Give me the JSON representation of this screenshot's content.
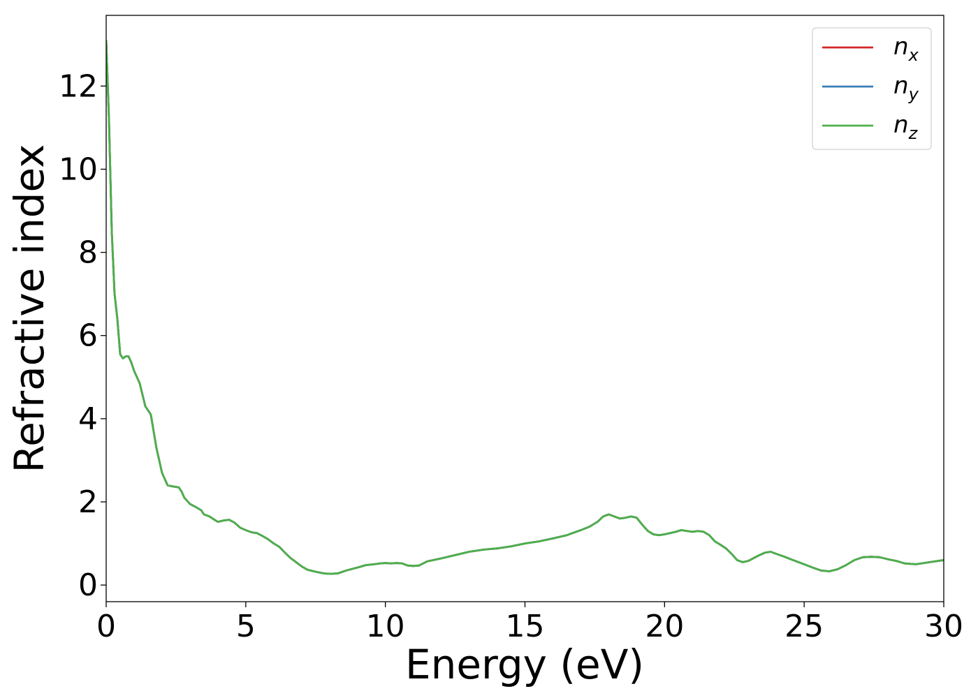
{
  "chart_data": {
    "type": "line",
    "title": "",
    "xlabel": "Energy (eV)",
    "ylabel": "Refractive index",
    "xlim": [
      0,
      30
    ],
    "ylim": [
      -0.4,
      13.7
    ],
    "xticks": [
      "0",
      "5",
      "10",
      "15",
      "20",
      "25",
      "30"
    ],
    "yticks": [
      "0",
      "2",
      "4",
      "6",
      "8",
      "10",
      "12"
    ],
    "grid": false,
    "legend_position": "top-right",
    "x": [
      0,
      0.1,
      0.2,
      0.3,
      0.4,
      0.5,
      0.6,
      0.7,
      0.8,
      0.9,
      1.0,
      1.1,
      1.2,
      1.4,
      1.6,
      1.8,
      2.0,
      2.2,
      2.4,
      2.6,
      2.7,
      2.8,
      3.0,
      3.2,
      3.4,
      3.5,
      3.7,
      3.9,
      4.0,
      4.2,
      4.4,
      4.6,
      4.8,
      5.0,
      5.2,
      5.4,
      5.6,
      5.8,
      6.0,
      6.2,
      6.4,
      6.6,
      6.8,
      7.0,
      7.2,
      7.5,
      7.8,
      8.0,
      8.3,
      8.6,
      9.0,
      9.3,
      9.6,
      9.8,
      10.0,
      10.2,
      10.4,
      10.6,
      10.8,
      11.0,
      11.2,
      11.5,
      12.0,
      12.5,
      13.0,
      13.5,
      14.0,
      14.5,
      15.0,
      15.5,
      16.0,
      16.5,
      17.0,
      17.3,
      17.6,
      17.8,
      18.0,
      18.2,
      18.4,
      18.6,
      18.8,
      19.0,
      19.2,
      19.4,
      19.6,
      19.8,
      20.0,
      20.2,
      20.4,
      20.6,
      20.8,
      21.0,
      21.2,
      21.4,
      21.6,
      21.8,
      22.0,
      22.2,
      22.4,
      22.6,
      22.8,
      23.0,
      23.2,
      23.4,
      23.6,
      23.8,
      24.0,
      24.3,
      24.6,
      25.0,
      25.3,
      25.6,
      25.9,
      26.2,
      26.5,
      26.8,
      27.1,
      27.4,
      27.7,
      28.0,
      28.3,
      28.6,
      29.0,
      29.5,
      30.0
    ],
    "series": [
      {
        "name": "n_x",
        "color": "#d62728",
        "y": [
          13.1,
          11.2,
          8.5,
          7.0,
          6.4,
          5.55,
          5.45,
          5.5,
          5.5,
          5.35,
          5.15,
          5.0,
          4.85,
          4.3,
          4.1,
          3.3,
          2.7,
          2.4,
          2.37,
          2.35,
          2.25,
          2.1,
          1.95,
          1.88,
          1.8,
          1.7,
          1.65,
          1.56,
          1.52,
          1.55,
          1.57,
          1.5,
          1.38,
          1.32,
          1.27,
          1.25,
          1.18,
          1.1,
          1.0,
          0.92,
          0.78,
          0.65,
          0.55,
          0.45,
          0.37,
          0.32,
          0.28,
          0.27,
          0.28,
          0.35,
          0.42,
          0.48,
          0.5,
          0.52,
          0.53,
          0.52,
          0.53,
          0.52,
          0.47,
          0.46,
          0.47,
          0.57,
          0.64,
          0.72,
          0.8,
          0.85,
          0.88,
          0.93,
          1.0,
          1.05,
          1.12,
          1.2,
          1.32,
          1.4,
          1.52,
          1.65,
          1.7,
          1.65,
          1.6,
          1.62,
          1.65,
          1.62,
          1.45,
          1.3,
          1.22,
          1.2,
          1.22,
          1.25,
          1.28,
          1.32,
          1.3,
          1.28,
          1.3,
          1.28,
          1.2,
          1.05,
          0.97,
          0.88,
          0.75,
          0.6,
          0.55,
          0.58,
          0.65,
          0.72,
          0.78,
          0.8,
          0.75,
          0.68,
          0.6,
          0.5,
          0.42,
          0.35,
          0.33,
          0.38,
          0.48,
          0.6,
          0.67,
          0.68,
          0.67,
          0.62,
          0.58,
          0.52,
          0.5,
          0.55,
          0.6
        ]
      },
      {
        "name": "n_y",
        "color": "#377eb8",
        "y": [
          13.1,
          11.2,
          8.5,
          7.0,
          6.4,
          5.55,
          5.45,
          5.5,
          5.5,
          5.35,
          5.15,
          5.0,
          4.85,
          4.3,
          4.1,
          3.3,
          2.7,
          2.4,
          2.37,
          2.35,
          2.25,
          2.1,
          1.95,
          1.88,
          1.8,
          1.7,
          1.65,
          1.56,
          1.52,
          1.55,
          1.57,
          1.5,
          1.38,
          1.32,
          1.27,
          1.25,
          1.18,
          1.1,
          1.0,
          0.92,
          0.78,
          0.65,
          0.55,
          0.45,
          0.37,
          0.32,
          0.28,
          0.27,
          0.28,
          0.35,
          0.42,
          0.48,
          0.5,
          0.52,
          0.53,
          0.52,
          0.53,
          0.52,
          0.47,
          0.46,
          0.47,
          0.57,
          0.64,
          0.72,
          0.8,
          0.85,
          0.88,
          0.93,
          1.0,
          1.05,
          1.12,
          1.2,
          1.32,
          1.4,
          1.52,
          1.65,
          1.7,
          1.65,
          1.6,
          1.62,
          1.65,
          1.62,
          1.45,
          1.3,
          1.22,
          1.2,
          1.22,
          1.25,
          1.28,
          1.32,
          1.3,
          1.28,
          1.3,
          1.28,
          1.2,
          1.05,
          0.97,
          0.88,
          0.75,
          0.6,
          0.55,
          0.58,
          0.65,
          0.72,
          0.78,
          0.8,
          0.75,
          0.68,
          0.6,
          0.5,
          0.42,
          0.35,
          0.33,
          0.38,
          0.48,
          0.6,
          0.67,
          0.68,
          0.67,
          0.62,
          0.58,
          0.52,
          0.5,
          0.55,
          0.6
        ]
      },
      {
        "name": "n_z",
        "color": "#4daf4a",
        "y": [
          13.1,
          11.2,
          8.5,
          7.0,
          6.4,
          5.55,
          5.45,
          5.5,
          5.5,
          5.35,
          5.15,
          5.0,
          4.85,
          4.3,
          4.1,
          3.3,
          2.7,
          2.4,
          2.37,
          2.35,
          2.25,
          2.1,
          1.95,
          1.88,
          1.8,
          1.7,
          1.65,
          1.56,
          1.52,
          1.55,
          1.57,
          1.5,
          1.38,
          1.32,
          1.27,
          1.25,
          1.18,
          1.1,
          1.0,
          0.92,
          0.78,
          0.65,
          0.55,
          0.45,
          0.37,
          0.32,
          0.28,
          0.27,
          0.28,
          0.35,
          0.42,
          0.48,
          0.5,
          0.52,
          0.53,
          0.52,
          0.53,
          0.52,
          0.47,
          0.46,
          0.47,
          0.57,
          0.64,
          0.72,
          0.8,
          0.85,
          0.88,
          0.93,
          1.0,
          1.05,
          1.12,
          1.2,
          1.32,
          1.4,
          1.52,
          1.65,
          1.7,
          1.65,
          1.6,
          1.62,
          1.65,
          1.62,
          1.45,
          1.3,
          1.22,
          1.2,
          1.22,
          1.25,
          1.28,
          1.32,
          1.3,
          1.28,
          1.3,
          1.28,
          1.2,
          1.05,
          0.97,
          0.88,
          0.75,
          0.6,
          0.55,
          0.58,
          0.65,
          0.72,
          0.78,
          0.8,
          0.75,
          0.68,
          0.6,
          0.5,
          0.42,
          0.35,
          0.33,
          0.38,
          0.48,
          0.6,
          0.67,
          0.68,
          0.67,
          0.62,
          0.58,
          0.52,
          0.5,
          0.55,
          0.6
        ]
      }
    ],
    "legend": [
      {
        "base": "n",
        "sub": "x",
        "color": "#d62728"
      },
      {
        "base": "n",
        "sub": "y",
        "color": "#377eb8"
      },
      {
        "base": "n",
        "sub": "z",
        "color": "#4daf4a"
      }
    ]
  }
}
